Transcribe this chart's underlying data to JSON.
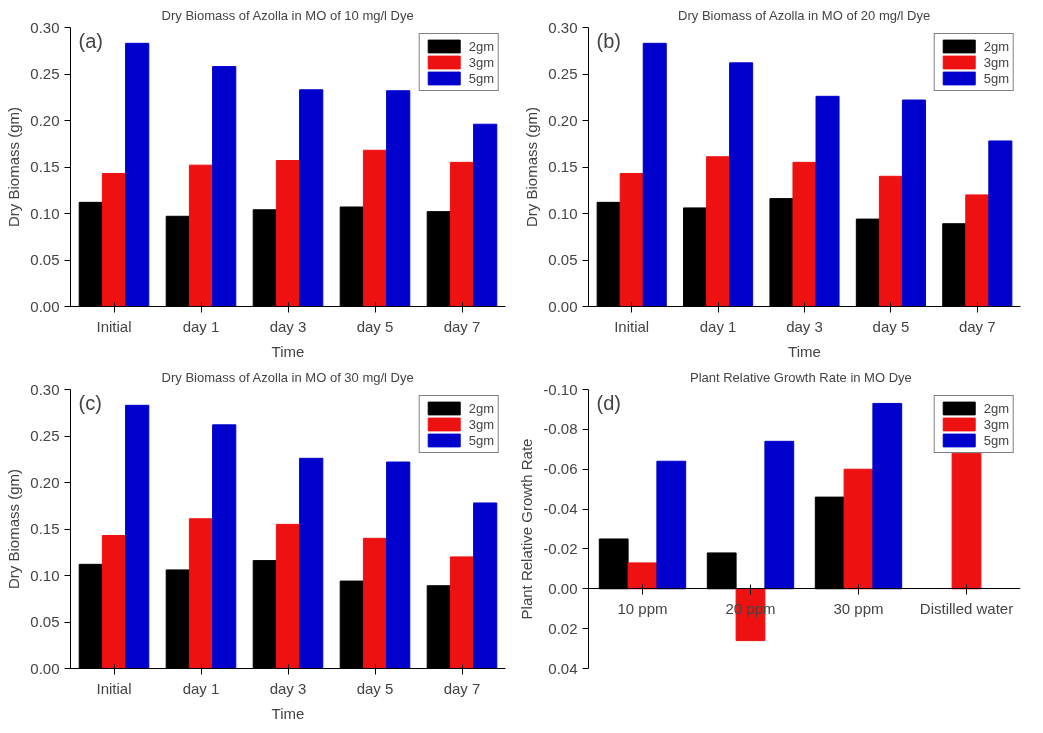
{
  "chart_data": [
    {
      "type": "bar",
      "title": "Dry Biomass of Azolla in MO of 10 mg/l Dye",
      "xlabel": "Time",
      "ylabel": "Dry Biomass (gm)",
      "annotations": [
        "(a)"
      ],
      "categories": [
        "Initial",
        "day 1",
        "day 3",
        "day 5",
        "day 7"
      ],
      "series": [
        {
          "name": "2gm",
          "color": "#000000",
          "values": [
            0.112,
            0.097,
            0.104,
            0.107,
            0.102
          ]
        },
        {
          "name": "3gm",
          "color": "#ee1111",
          "values": [
            0.143,
            0.152,
            0.157,
            0.168,
            0.155
          ]
        },
        {
          "name": "5gm",
          "color": "#0000cc",
          "values": [
            0.283,
            0.258,
            0.233,
            0.232,
            0.196
          ]
        }
      ],
      "ylim": [
        0,
        0.3
      ],
      "yticks": [
        {
          "value": 0,
          "label": "0.00"
        },
        {
          "value": 0.05,
          "label": "0.05"
        },
        {
          "value": 0.1,
          "label": "0.10"
        },
        {
          "value": 0.15,
          "label": "0.15"
        },
        {
          "value": 0.2,
          "label": "0.20"
        },
        {
          "value": 0.25,
          "label": "0.25"
        },
        {
          "value": 0.3,
          "label": "0.30"
        }
      ],
      "grid": false,
      "legend": "top right"
    },
    {
      "type": "bar",
      "title": "Dry Biomass of Azolla in MO of 20 mg/l Dye",
      "xlabel": "Time",
      "ylabel": "Dry Biomass (gm)",
      "annotations": [
        "(b)"
      ],
      "categories": [
        "Initial",
        "day 1",
        "day 3",
        "day 5",
        "day 7"
      ],
      "series": [
        {
          "name": "2gm",
          "color": "#000000",
          "values": [
            0.112,
            0.106,
            0.116,
            0.094,
            0.089
          ]
        },
        {
          "name": "3gm",
          "color": "#ee1111",
          "values": [
            0.143,
            0.161,
            0.155,
            0.14,
            0.12
          ]
        },
        {
          "name": "5gm",
          "color": "#0000cc",
          "values": [
            0.283,
            0.262,
            0.226,
            0.222,
            0.178
          ]
        }
      ],
      "ylim": [
        0,
        0.3
      ],
      "yticks": [
        {
          "value": 0,
          "label": "0.00"
        },
        {
          "value": 0.05,
          "label": "0.05"
        },
        {
          "value": 0.1,
          "label": "0.10"
        },
        {
          "value": 0.15,
          "label": "0.15"
        },
        {
          "value": 0.2,
          "label": "0.20"
        },
        {
          "value": 0.25,
          "label": "0.25"
        },
        {
          "value": 0.3,
          "label": "0.30"
        }
      ],
      "grid": false,
      "legend": "top right"
    },
    {
      "type": "bar",
      "title": "Dry Biomass of Azolla in MO of 30 mg/l Dye",
      "xlabel": "Time",
      "ylabel": "Dry Biomass (gm)",
      "annotations": [
        "(c)"
      ],
      "categories": [
        "Initial",
        "day 1",
        "day 3",
        "day 5",
        "day 7"
      ],
      "series": [
        {
          "name": "2gm",
          "color": "#000000",
          "values": [
            0.112,
            0.106,
            0.116,
            0.094,
            0.089
          ]
        },
        {
          "name": "3gm",
          "color": "#ee1111",
          "values": [
            0.143,
            0.161,
            0.155,
            0.14,
            0.12
          ]
        },
        {
          "name": "5gm",
          "color": "#0000cc",
          "values": [
            0.283,
            0.262,
            0.226,
            0.222,
            0.178
          ]
        }
      ],
      "ylim": [
        0,
        0.3
      ],
      "yticks": [
        {
          "value": 0,
          "label": "0.00"
        },
        {
          "value": 0.05,
          "label": "0.05"
        },
        {
          "value": 0.1,
          "label": "0.10"
        },
        {
          "value": 0.15,
          "label": "0.15"
        },
        {
          "value": 0.2,
          "label": "0.20"
        },
        {
          "value": 0.25,
          "label": "0.25"
        },
        {
          "value": 0.3,
          "label": "0.30"
        }
      ],
      "grid": false,
      "legend": "top right"
    },
    {
      "type": "bar",
      "title": "Plant  Relative Growth Rate  in MO Dye",
      "ylabel": "Plant Relative Growth Rate",
      "annotations": [
        "(d)"
      ],
      "categories": [
        "10 ppm",
        "20 ppm",
        "30 ppm",
        "Distilled water"
      ],
      "series": [
        {
          "name": "2gm",
          "color": "#000000",
          "values": [
            -0.025,
            -0.018,
            -0.046,
            null
          ]
        },
        {
          "name": "3gm",
          "color": "#ee1111",
          "values": [
            -0.013,
            0.026,
            -0.06,
            -0.068
          ]
        },
        {
          "name": "5gm",
          "color": "#0000cc",
          "values": [
            -0.064,
            -0.074,
            -0.093,
            null
          ]
        }
      ],
      "ylim": [
        0.04,
        -0.1
      ],
      "yticks": [
        {
          "value": 0.04,
          "label": "0.04"
        },
        {
          "value": 0.02,
          "label": "0.02"
        },
        {
          "value": 0,
          "label": "0.00"
        },
        {
          "value": -0.02,
          "label": "-0.02"
        },
        {
          "value": -0.04,
          "label": "-0.04"
        },
        {
          "value": -0.06,
          "label": "-0.06"
        },
        {
          "value": -0.08,
          "label": "-0.08"
        },
        {
          "value": -0.1,
          "label": "-0.10"
        }
      ],
      "grid": false,
      "legend": "top right"
    }
  ]
}
